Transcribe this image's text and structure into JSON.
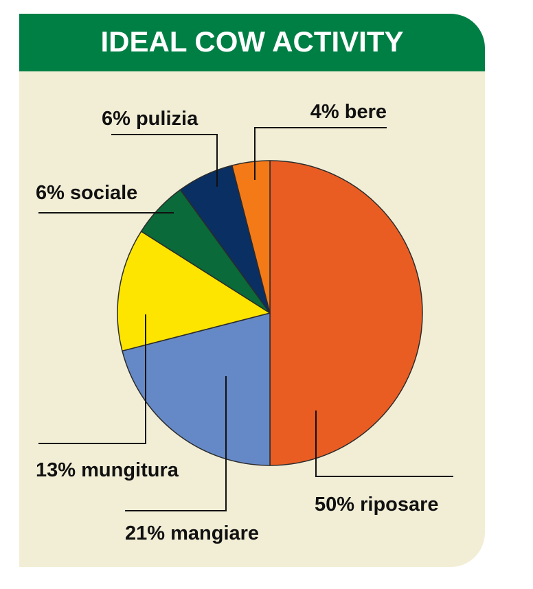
{
  "chart_data": {
    "type": "pie",
    "title": "IDEAL COW ACTIVITY",
    "colors": {
      "header": "#007f45",
      "panel": "#f2eed6",
      "outline": "#2b2b2b"
    },
    "slices": [
      {
        "label": "riposare",
        "value": 50,
        "display": "50% riposare",
        "color": "#e95d23"
      },
      {
        "label": "mangiare",
        "value": 21,
        "display": "21% mangiare",
        "color": "#6589c6"
      },
      {
        "label": "mungitura",
        "value": 13,
        "display": "13% mungitura",
        "color": "#fde500"
      },
      {
        "label": "sociale",
        "value": 6,
        "display": "6% sociale",
        "color": "#0a6a3a"
      },
      {
        "label": "pulizia",
        "value": 6,
        "display": "6% pulizia",
        "color": "#0a2f62"
      },
      {
        "label": "bere",
        "value": 4,
        "display": "4% bere",
        "color": "#f47a18"
      }
    ]
  }
}
